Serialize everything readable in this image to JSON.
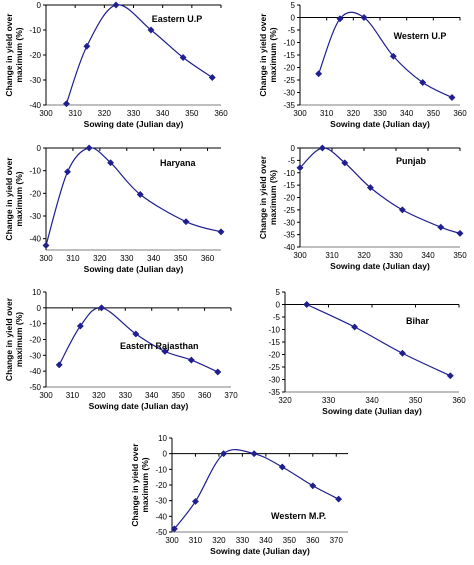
{
  "chart_data": [
    {
      "type": "line",
      "title": "Eastern U.P",
      "xlabel": "Sowing date (Julian day)",
      "ylabel": [
        "Change in yield over",
        "maximum (%)"
      ],
      "xlim": [
        300,
        360
      ],
      "xticks": [
        300,
        310,
        320,
        330,
        340,
        350,
        360
      ],
      "ylim": [
        -40,
        0
      ],
      "yticks": [
        0,
        -10,
        -20,
        -30,
        -40
      ],
      "x": [
        307,
        314,
        324,
        336,
        347,
        357
      ],
      "y": [
        -39.5,
        -16.5,
        0,
        -10,
        -21,
        -29
      ],
      "series_color": "#1f1f8f"
    },
    {
      "type": "line",
      "title": "Western U.P",
      "xlabel": "Sowing date (Julian day)",
      "ylabel": [
        "Change in yield over",
        "maximum (%)"
      ],
      "xlim": [
        300,
        360
      ],
      "xticks": [
        300,
        310,
        320,
        330,
        340,
        350,
        360
      ],
      "ylim": [
        -35,
        5
      ],
      "yticks": [
        5,
        0,
        -5,
        -10,
        -15,
        -20,
        -25,
        -30,
        -35
      ],
      "x": [
        307,
        315,
        324,
        335,
        346,
        357
      ],
      "y": [
        -22.5,
        -0.5,
        0,
        -15.5,
        -26,
        -32
      ],
      "series_color": "#1f1f8f"
    },
    {
      "type": "line",
      "title": "Haryana",
      "xlabel": "Sowing date (Julian day)",
      "ylabel": [
        "Change in yield over",
        "maximum (%)"
      ],
      "xlim": [
        300,
        365
      ],
      "xticks": [
        300,
        310,
        320,
        330,
        340,
        350,
        360
      ],
      "ylim": [
        -45,
        0
      ],
      "yticks": [
        0,
        -10,
        -20,
        -30,
        -40
      ],
      "x": [
        300,
        308,
        316,
        324,
        335,
        352,
        365
      ],
      "y": [
        -43,
        -10.5,
        0,
        -6.5,
        -20.5,
        -32.5,
        -37
      ],
      "series_color": "#1f1f8f"
    },
    {
      "type": "line",
      "title": "Punjab",
      "xlabel": "Sowing date (Julian day)",
      "ylabel": [
        "Change in yield over",
        "maximum (%)"
      ],
      "xlim": [
        300,
        350
      ],
      "xticks": [
        300,
        310,
        320,
        330,
        340,
        350
      ],
      "ylim": [
        -40,
        0
      ],
      "yticks": [
        0,
        -5,
        -10,
        -15,
        -20,
        -25,
        -30,
        -35,
        -40
      ],
      "x": [
        300,
        307,
        314,
        322,
        332,
        344,
        350
      ],
      "y": [
        -8,
        0,
        -6,
        -16,
        -25,
        -32,
        -34.5
      ],
      "series_color": "#1f1f8f"
    },
    {
      "type": "line",
      "title": "Eastern Rajasthan",
      "xlabel": "Sowing date (Julian day)",
      "ylabel": [
        "Change in yield over",
        "maximum (%)"
      ],
      "xlim": [
        300,
        370
      ],
      "xticks": [
        300,
        310,
        320,
        330,
        340,
        350,
        360,
        370
      ],
      "ylim": [
        -50,
        10
      ],
      "yticks": [
        10,
        0,
        -10,
        -20,
        -30,
        -40,
        -50
      ],
      "x": [
        305,
        313,
        321,
        334,
        345,
        355,
        365
      ],
      "y": [
        -36,
        -11.5,
        0,
        -16.5,
        -27.5,
        -33,
        -40.5
      ],
      "series_color": "#1f1f8f"
    },
    {
      "type": "line",
      "title": "Bihar",
      "xlabel": "Sowing date (Julian day)",
      "ylabel": [],
      "xlim": [
        320,
        360
      ],
      "xticks": [
        320,
        330,
        340,
        350,
        360
      ],
      "ylim": [
        -35,
        5
      ],
      "yticks": [
        5,
        0,
        -5,
        -10,
        -15,
        -20,
        -25,
        -30,
        -35
      ],
      "x": [
        325,
        336,
        347,
        358
      ],
      "y": [
        0,
        -9,
        -19.5,
        -28.5
      ],
      "series_color": "#1f1f8f"
    },
    {
      "type": "line",
      "title": "Western M.P.",
      "xlabel": "Sowing date (Julian day)",
      "ylabel": [
        "Change in yield over",
        "maximum (%)"
      ],
      "xlim": [
        300,
        375
      ],
      "xticks": [
        300,
        310,
        320,
        330,
        340,
        350,
        360,
        370
      ],
      "ylim": [
        -50,
        10
      ],
      "yticks": [
        10,
        0,
        -10,
        -20,
        -30,
        -40,
        -50
      ],
      "x": [
        301,
        310,
        322,
        335,
        347,
        360,
        371
      ],
      "y": [
        -48,
        -30.5,
        0,
        0,
        -8.5,
        -20.5,
        -29
      ],
      "series_color": "#1f1f8f"
    }
  ]
}
